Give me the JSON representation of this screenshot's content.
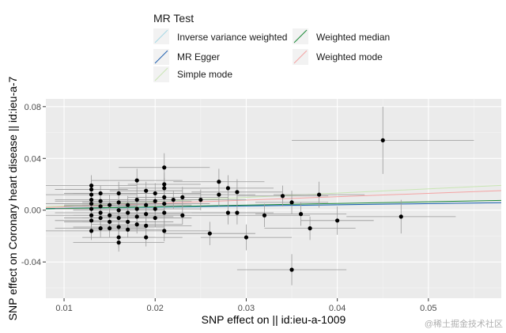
{
  "chart_data": {
    "type": "scatter",
    "title": "",
    "xlabel": "SNP effect on  || id:ieu-a-1009",
    "ylabel": "SNP effect on Coronary heart disease || id:ieu-a-7",
    "xlim": [
      0.008,
      0.058
    ],
    "ylim": [
      -0.068,
      0.086
    ],
    "x_ticks": [
      0.01,
      0.02,
      0.03,
      0.04,
      0.05
    ],
    "x_tick_labels": [
      "0.01",
      "0.02",
      "0.03",
      "0.04",
      "0.05"
    ],
    "y_ticks": [
      -0.04,
      0.0,
      0.04,
      0.08
    ],
    "y_tick_labels": [
      "-0.04",
      "0.00",
      "0.04",
      "0.08"
    ],
    "grid": true,
    "legend": {
      "title": "MR Test",
      "position": "top",
      "entries": [
        {
          "label": "Inverse variance weighted",
          "color": "#A6D8E6"
        },
        {
          "label": "Weighted median",
          "color": "#1E8B3A"
        },
        {
          "label": "MR Egger",
          "color": "#1F5FAF"
        },
        {
          "label": "Weighted mode",
          "color": "#F4A3A3"
        },
        {
          "label": "Simple mode",
          "color": "#C9E6B4"
        }
      ]
    },
    "lines": [
      {
        "name": "Inverse variance weighted",
        "color": "#A6D8E6",
        "intercept": 0,
        "slope": 0.1
      },
      {
        "name": "MR Egger",
        "color": "#1F5FAF",
        "intercept": 0.0006,
        "slope": 0.09
      },
      {
        "name": "Simple mode",
        "color": "#C9E6B4",
        "intercept": 0,
        "slope": 0.33
      },
      {
        "name": "Weighted median",
        "color": "#1E8B3A",
        "intercept": 0,
        "slope": 0.13
      },
      {
        "name": "Weighted mode",
        "color": "#F4A3A3",
        "intercept": 0,
        "slope": 0.26
      }
    ],
    "points": [
      {
        "x": 0.013,
        "y": 0.019,
        "xerr": 0.005,
        "yerr": 0.008
      },
      {
        "x": 0.013,
        "y": 0.016,
        "xerr": 0.004,
        "yerr": 0.007
      },
      {
        "x": 0.013,
        "y": 0.012,
        "xerr": 0.005,
        "yerr": 0.009
      },
      {
        "x": 0.013,
        "y": 0.008,
        "xerr": 0.004,
        "yerr": 0.008
      },
      {
        "x": 0.013,
        "y": 0.005,
        "xerr": 0.005,
        "yerr": 0.007
      },
      {
        "x": 0.013,
        "y": 0.001,
        "xerr": 0.004,
        "yerr": 0.008
      },
      {
        "x": 0.013,
        "y": -0.004,
        "xerr": 0.005,
        "yerr": 0.007
      },
      {
        "x": 0.013,
        "y": -0.008,
        "xerr": 0.004,
        "yerr": 0.008
      },
      {
        "x": 0.013,
        "y": -0.016,
        "xerr": 0.005,
        "yerr": 0.007
      },
      {
        "x": 0.014,
        "y": 0.013,
        "xerr": 0.004,
        "yerr": 0.006
      },
      {
        "x": 0.014,
        "y": 0.007,
        "xerr": 0.005,
        "yerr": 0.007
      },
      {
        "x": 0.014,
        "y": 0.003,
        "xerr": 0.004,
        "yerr": 0.006
      },
      {
        "x": 0.014,
        "y": -0.002,
        "xerr": 0.005,
        "yerr": 0.007
      },
      {
        "x": 0.014,
        "y": -0.006,
        "xerr": 0.004,
        "yerr": 0.006
      },
      {
        "x": 0.014,
        "y": -0.014,
        "xerr": 0.005,
        "yerr": 0.007
      },
      {
        "x": 0.015,
        "y": 0.004,
        "xerr": 0.005,
        "yerr": 0.008
      },
      {
        "x": 0.015,
        "y": -0.004,
        "xerr": 0.004,
        "yerr": 0.007
      },
      {
        "x": 0.015,
        "y": -0.009,
        "xerr": 0.005,
        "yerr": 0.008
      },
      {
        "x": 0.015,
        "y": -0.014,
        "xerr": 0.004,
        "yerr": 0.007
      },
      {
        "x": 0.016,
        "y": 0.013,
        "xerr": 0.005,
        "yerr": 0.009
      },
      {
        "x": 0.016,
        "y": 0.006,
        "xerr": 0.004,
        "yerr": 0.008
      },
      {
        "x": 0.016,
        "y": 0.0,
        "xerr": 0.005,
        "yerr": 0.007
      },
      {
        "x": 0.016,
        "y": -0.006,
        "xerr": 0.004,
        "yerr": 0.008
      },
      {
        "x": 0.016,
        "y": -0.013,
        "xerr": 0.005,
        "yerr": 0.007
      },
      {
        "x": 0.016,
        "y": -0.021,
        "xerr": 0.004,
        "yerr": 0.008
      },
      {
        "x": 0.016,
        "y": -0.025,
        "xerr": 0.005,
        "yerr": 0.007
      },
      {
        "x": 0.017,
        "y": 0.004,
        "xerr": 0.005,
        "yerr": 0.007
      },
      {
        "x": 0.017,
        "y": -0.002,
        "xerr": 0.004,
        "yerr": 0.006
      },
      {
        "x": 0.017,
        "y": -0.009,
        "xerr": 0.005,
        "yerr": 0.007
      },
      {
        "x": 0.017,
        "y": -0.015,
        "xerr": 0.004,
        "yerr": 0.006
      },
      {
        "x": 0.018,
        "y": 0.023,
        "xerr": 0.005,
        "yerr": 0.009
      },
      {
        "x": 0.018,
        "y": 0.008,
        "xerr": 0.004,
        "yerr": 0.008
      },
      {
        "x": 0.018,
        "y": 0.001,
        "xerr": 0.005,
        "yerr": 0.007
      },
      {
        "x": 0.018,
        "y": -0.005,
        "xerr": 0.004,
        "yerr": 0.008
      },
      {
        "x": 0.018,
        "y": -0.011,
        "xerr": 0.005,
        "yerr": 0.007
      },
      {
        "x": 0.019,
        "y": 0.015,
        "xerr": 0.004,
        "yerr": 0.007
      },
      {
        "x": 0.019,
        "y": 0.004,
        "xerr": 0.005,
        "yerr": 0.008
      },
      {
        "x": 0.019,
        "y": -0.003,
        "xerr": 0.004,
        "yerr": 0.007
      },
      {
        "x": 0.019,
        "y": -0.012,
        "xerr": 0.005,
        "yerr": 0.008
      },
      {
        "x": 0.019,
        "y": -0.021,
        "xerr": 0.004,
        "yerr": 0.007
      },
      {
        "x": 0.02,
        "y": 0.013,
        "xerr": 0.005,
        "yerr": 0.008
      },
      {
        "x": 0.02,
        "y": 0.007,
        "xerr": 0.004,
        "yerr": 0.007
      },
      {
        "x": 0.02,
        "y": 0.001,
        "xerr": 0.005,
        "yerr": 0.008
      },
      {
        "x": 0.02,
        "y": -0.006,
        "xerr": 0.004,
        "yerr": 0.007
      },
      {
        "x": 0.021,
        "y": 0.033,
        "xerr": 0.005,
        "yerr": 0.011
      },
      {
        "x": 0.021,
        "y": 0.02,
        "xerr": 0.004,
        "yerr": 0.009
      },
      {
        "x": 0.021,
        "y": 0.017,
        "xerr": 0.005,
        "yerr": 0.008
      },
      {
        "x": 0.021,
        "y": 0.01,
        "xerr": 0.004,
        "yerr": 0.009
      },
      {
        "x": 0.021,
        "y": 0.005,
        "xerr": 0.005,
        "yerr": 0.008
      },
      {
        "x": 0.021,
        "y": -0.002,
        "xerr": 0.004,
        "yerr": 0.009
      },
      {
        "x": 0.021,
        "y": -0.016,
        "xerr": 0.005,
        "yerr": 0.008
      },
      {
        "x": 0.022,
        "y": 0.008,
        "xerr": 0.005,
        "yerr": 0.007
      },
      {
        "x": 0.023,
        "y": 0.01,
        "xerr": 0.005,
        "yerr": 0.008
      },
      {
        "x": 0.023,
        "y": -0.004,
        "xerr": 0.004,
        "yerr": 0.007
      },
      {
        "x": 0.025,
        "y": 0.008,
        "xerr": 0.005,
        "yerr": 0.008
      },
      {
        "x": 0.026,
        "y": -0.018,
        "xerr": 0.005,
        "yerr": 0.009
      },
      {
        "x": 0.027,
        "y": 0.022,
        "xerr": 0.005,
        "yerr": 0.01
      },
      {
        "x": 0.027,
        "y": 0.012,
        "xerr": 0.004,
        "yerr": 0.009
      },
      {
        "x": 0.028,
        "y": 0.017,
        "xerr": 0.005,
        "yerr": 0.01
      },
      {
        "x": 0.028,
        "y": -0.002,
        "xerr": 0.004,
        "yerr": 0.009
      },
      {
        "x": 0.029,
        "y": 0.014,
        "xerr": 0.005,
        "yerr": 0.01
      },
      {
        "x": 0.029,
        "y": -0.002,
        "xerr": 0.004,
        "yerr": 0.009
      },
      {
        "x": 0.03,
        "y": -0.021,
        "xerr": 0.005,
        "yerr": 0.01
      },
      {
        "x": 0.032,
        "y": -0.004,
        "xerr": 0.005,
        "yerr": 0.009
      },
      {
        "x": 0.034,
        "y": 0.011,
        "xerr": 0.005,
        "yerr": 0.008
      },
      {
        "x": 0.035,
        "y": -0.046,
        "xerr": 0.006,
        "yerr": 0.012
      },
      {
        "x": 0.035,
        "y": 0.006,
        "xerr": 0.004,
        "yerr": 0.009
      },
      {
        "x": 0.036,
        "y": -0.003,
        "xerr": 0.005,
        "yerr": 0.009
      },
      {
        "x": 0.037,
        "y": -0.014,
        "xerr": 0.005,
        "yerr": 0.009
      },
      {
        "x": 0.038,
        "y": 0.012,
        "xerr": 0.005,
        "yerr": 0.01
      },
      {
        "x": 0.04,
        "y": -0.008,
        "xerr": 0.004,
        "yerr": 0.011
      },
      {
        "x": 0.045,
        "y": 0.054,
        "xerr": 0.01,
        "yerr": 0.026
      },
      {
        "x": 0.047,
        "y": -0.005,
        "xerr": 0.006,
        "yerr": 0.013
      }
    ]
  },
  "watermark": "@稀土掘金技术社区"
}
